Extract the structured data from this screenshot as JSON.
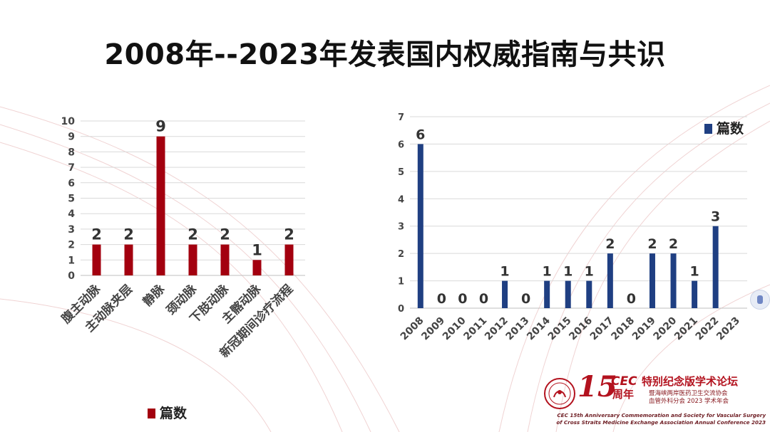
{
  "title": "2008年--2023年发表国内权威指南与共识",
  "colors": {
    "bar_red": "#a3000f",
    "bar_blue": "#1f3f82",
    "grid": "#d9d9d9"
  },
  "chart_data": [
    {
      "type": "bar",
      "categories": [
        "腹主动脉",
        "主动脉夹层",
        "静脉",
        "颈动脉",
        "下肢动脉",
        "主髂动脉",
        "新冠期间诊疗流程"
      ],
      "series": [
        {
          "name": "篇数",
          "values": [
            2,
            2,
            9,
            2,
            2,
            1,
            2
          ]
        }
      ],
      "yticks": [
        0,
        1,
        2,
        3,
        4,
        5,
        6,
        7,
        8,
        9,
        10
      ],
      "ylim": [
        0,
        10
      ],
      "grid": true,
      "legend": "bottom-left",
      "xlabel": "",
      "ylabel": ""
    },
    {
      "type": "bar",
      "categories": [
        "2008",
        "2009",
        "2010",
        "2011",
        "2012",
        "2013",
        "2014",
        "2015",
        "2016",
        "2017",
        "2018",
        "2019",
        "2020",
        "2021",
        "2022",
        "2023"
      ],
      "series": [
        {
          "name": "篇数",
          "values": [
            6,
            0,
            0,
            0,
            1,
            0,
            1,
            1,
            1,
            2,
            0,
            2,
            2,
            1,
            3,
            null
          ]
        }
      ],
      "yticks": [
        0,
        1,
        2,
        3,
        4,
        5,
        6,
        7
      ],
      "ylim": [
        0,
        7
      ],
      "grid": true,
      "legend": "top-right",
      "xlabel": "",
      "ylabel": ""
    }
  ],
  "legend": {
    "label": "篇数"
  },
  "logo": {
    "number": "15",
    "cec": "CEC",
    "zhounian": "周年",
    "main": "特别纪念版学术论坛",
    "sub1": "暨海峡两岸医药卫生交流协会",
    "sub2": "血管外科分会 2023 学术年会",
    "en1": "CEC 15th Anniversary Commemoration and Society for Vascular Surgery",
    "en2": "of Cross Straits Medicine Exchange Association Annual Conference 2023"
  }
}
